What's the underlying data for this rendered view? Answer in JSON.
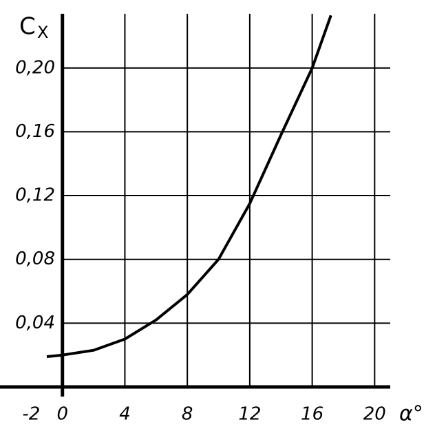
{
  "chart_data": {
    "type": "line",
    "y_label": "C",
    "y_label_sub": "X",
    "x_label": "α°",
    "x": [
      -1,
      0,
      2,
      4,
      6,
      8,
      10,
      12,
      14,
      16,
      17.2
    ],
    "series": [
      {
        "color": "#000000",
        "values": [
          0.019,
          0.02,
          0.023,
          0.03,
          0.042,
          0.058,
          0.08,
          0.115,
          0.158,
          0.2,
          0.233
        ]
      }
    ],
    "xlim": [
      -4,
      21
    ],
    "ylim": [
      0,
      0.234
    ],
    "xticks": [
      -2,
      0,
      4,
      8,
      12,
      16,
      20
    ],
    "yticks": [
      {
        "value": 0.04,
        "label": "0,04"
      },
      {
        "value": 0.08,
        "label": "0,08"
      },
      {
        "value": 0.12,
        "label": "0,12"
      },
      {
        "value": 0.16,
        "label": "0,16"
      },
      {
        "value": 0.2,
        "label": "0,20"
      }
    ],
    "grid": true
  }
}
